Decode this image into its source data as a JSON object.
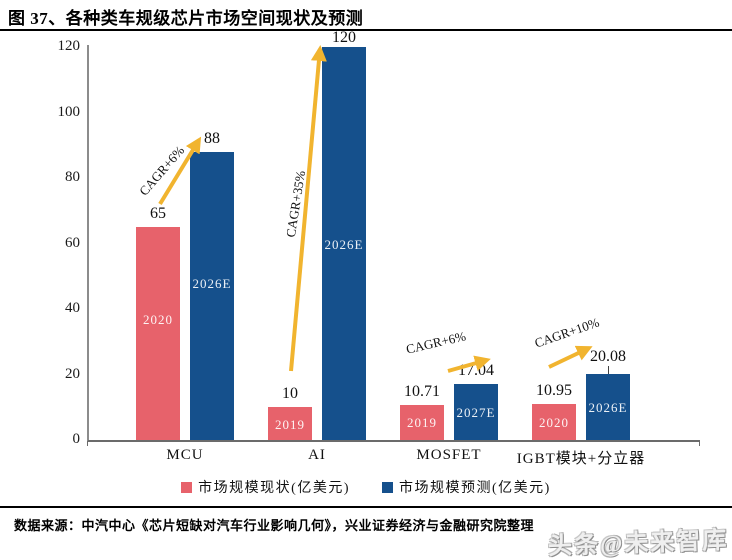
{
  "title": "图 37、各种类车规级芯片市场空间现状及预测",
  "source": "数据来源：中汽中心《芯片短缺对汽车行业影响几何》，兴业证券经济与金融研究院整理",
  "watermark": "头条@未来智库",
  "colors": {
    "current": "#E7626B",
    "forecast": "#15508C",
    "arrow": "#F1B42F",
    "axis": "#8C8C8C"
  },
  "legend": [
    {
      "label": "市场规模现状(亿美元)",
      "color": "#E7626B"
    },
    {
      "label": "市场规模预测(亿美元)",
      "color": "#15508C"
    }
  ],
  "chart_data": {
    "type": "bar",
    "title": "各种类车规级芯片市场空间现状及预测",
    "categories": [
      "MCU",
      "AI",
      "MOSFET",
      "IGBT模块+分立器"
    ],
    "series": [
      {
        "name": "市场规模现状(亿美元)",
        "color": "#E7626B",
        "values": [
          65,
          10,
          10.71,
          10.95
        ],
        "bar_labels": [
          "2020",
          "2019",
          "2019",
          "2020"
        ]
      },
      {
        "name": "市场规模预测(亿美元)",
        "color": "#15508C",
        "values": [
          88,
          120,
          17.04,
          20.08
        ],
        "bar_labels": [
          "2026E",
          "2026E",
          "2027E",
          "2026E"
        ]
      }
    ],
    "annotations": [
      {
        "text": "CAGR+6%",
        "category": "MCU"
      },
      {
        "text": "CAGR+35%",
        "category": "AI"
      },
      {
        "text": "CAGR+6%",
        "category": "MOSFET"
      },
      {
        "text": "CAGR+10%",
        "category": "IGBT模块+分立器"
      }
    ],
    "xlabel": "",
    "ylabel": "",
    "ylim": [
      0,
      120
    ],
    "yticks": [
      0,
      20,
      40,
      60,
      80,
      100,
      120
    ],
    "grid": false,
    "legend_position": "bottom"
  }
}
